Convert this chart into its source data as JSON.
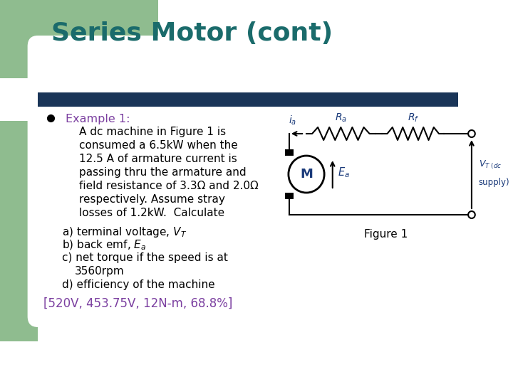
{
  "title": "Series Motor (cont)",
  "title_color": "#1a6b6b",
  "title_fontsize": 26,
  "bg_color": "#ffffff",
  "green_rect_color": "#8fbc8f",
  "navy_bar_color": "#1a3558",
  "bullet_color": "#000000",
  "example_label": "Example 1:",
  "example_color": "#7b3fa0",
  "body_text_color": "#000000",
  "answer_color": "#7b3fa0",
  "body_lines": [
    "A dc machine in Figure 1 is",
    "consumed a 6.5kW when the",
    "12.5 A of armature current is",
    "passing thru the armature and",
    "field resistance of 3.3Ω and 2.0Ω",
    "respectively. Assume stray",
    "losses of 1.2kW.  Calculate"
  ],
  "answer_line": "[520V, 453.75V, 12N-m, 68.8%]",
  "figure_label": "Figure 1",
  "label_color": "#1a3a7a"
}
